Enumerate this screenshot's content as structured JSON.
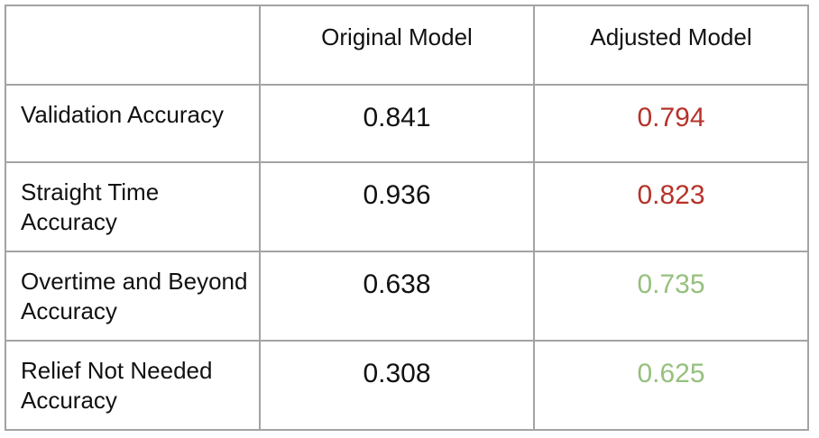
{
  "table": {
    "headers": [
      "",
      "Original Model",
      "Adjusted Model"
    ],
    "rows": [
      {
        "label": "Validation Accuracy",
        "original": "0.841",
        "adjusted": "0.794",
        "adjusted_color": "#b5332a"
      },
      {
        "label": "Straight Time Accuracy",
        "original": "0.936",
        "adjusted": "0.823",
        "adjusted_color": "#b5332a"
      },
      {
        "label": "Overtime and Beyond Accuracy",
        "original": "0.638",
        "adjusted": "0.735",
        "adjusted_color": "#96c07e"
      },
      {
        "label": "Relief Not Needed Accuracy",
        "original": "0.308",
        "adjusted": "0.625",
        "adjusted_color": "#96c07e"
      }
    ]
  },
  "colors": {
    "text": "#111111",
    "decrease": "#b5332a",
    "increase": "#96c07e",
    "border": "#a3a3a3"
  }
}
